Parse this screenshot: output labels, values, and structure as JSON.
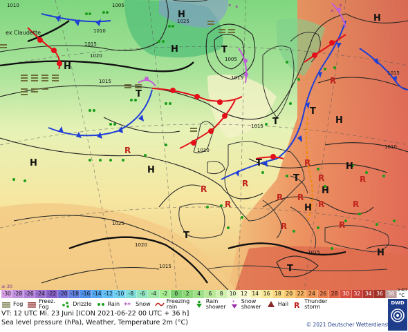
{
  "map": {
    "label_corner": "ex Claudette",
    "pressure_labels": [
      {
        "id": "p1",
        "text": "1010"
      },
      {
        "id": "p2",
        "text": "1005"
      },
      {
        "id": "p3",
        "text": "1015"
      },
      {
        "id": "p4",
        "text": "1020"
      },
      {
        "id": "p5",
        "text": "1010"
      },
      {
        "id": "p6",
        "text": "1025"
      },
      {
        "id": "p7",
        "text": "1005"
      },
      {
        "id": "p8",
        "text": "1015"
      },
      {
        "id": "p9",
        "text": "1015"
      },
      {
        "id": "p10",
        "text": "1010"
      },
      {
        "id": "p11",
        "text": "1025"
      },
      {
        "id": "p12",
        "text": "1020"
      },
      {
        "id": "p13",
        "text": "1015"
      },
      {
        "id": "p14",
        "text": "1010"
      },
      {
        "id": "p15",
        "text": "1015"
      },
      {
        "id": "p16",
        "text": "1015"
      },
      {
        "id": "p17",
        "text": "1015"
      }
    ],
    "pressure_centres": [
      "H",
      "T",
      "H",
      "T",
      "H",
      "H",
      "H",
      "T",
      "H",
      "T",
      "H",
      "T",
      "T",
      "T",
      "H",
      "H",
      "H",
      "T",
      "H"
    ]
  },
  "scale": {
    "values": [
      "-30",
      "-28",
      "-26",
      "-24",
      "-22",
      "-20",
      "-18",
      "-16",
      "-14",
      "-12",
      "-10",
      "-8",
      "-6",
      "-4",
      "-2",
      "0",
      "2",
      "4",
      "6",
      "8",
      "10",
      "12",
      "14",
      "16",
      "18",
      "20",
      "22",
      "24",
      "26",
      "28",
      "30",
      "32",
      "34",
      "36",
      "38"
    ],
    "colors": [
      "#d8a0e8",
      "#c090e0",
      "#b080d8",
      "#9c70d0",
      "#8860c8",
      "#7070d8",
      "#6080e0",
      "#5090e8",
      "#50a8f0",
      "#60c0f4",
      "#70d0f0",
      "#80dcd8",
      "#90e4c0",
      "#a0e8a8",
      "#a8ec90",
      "#7cd070",
      "#8cd878",
      "#a0e088",
      "#b8e898",
      "#d0f0b0",
      "#e8f8c8",
      "#f8f8d0",
      "#f8f0b0",
      "#f8e898",
      "#f8d880",
      "#f8c870",
      "#f4b060",
      "#f09858",
      "#ec8050",
      "#e46848",
      "#d85040",
      "#c84038",
      "#b03830",
      "#a03028",
      "#c0a0a0"
    ],
    "unit_top": "≥40",
    "unit_bottom": "°C",
    "left_tag": "≤-30"
  },
  "legend": [
    {
      "id": "fog",
      "label": "Fog"
    },
    {
      "id": "freezing-fog",
      "label": "Freez. Fog"
    },
    {
      "id": "drizzle",
      "label": "Drizzle"
    },
    {
      "id": "rain",
      "label": "Rain"
    },
    {
      "id": "snow",
      "label": "Snow"
    },
    {
      "id": "freezing-rain",
      "label": "Freezing rain"
    },
    {
      "id": "rain-shower",
      "label": "Rain shower"
    },
    {
      "id": "snow-shower",
      "label": "Snow shower"
    },
    {
      "id": "hail",
      "label": "Hail"
    },
    {
      "id": "thunderstorm",
      "label": "Thunder storm"
    }
  ],
  "footer": {
    "line1": "VT: 12 UTC Mi.  23 Juni [ICON 2021-06-22  00 UTC + 36 h]",
    "line2": "Sea level pressure (hPa), Weather, Temperature 2m (°C)",
    "copyright": "© 2021 Deutscher Wetterdienst",
    "logo": "DWD"
  }
}
